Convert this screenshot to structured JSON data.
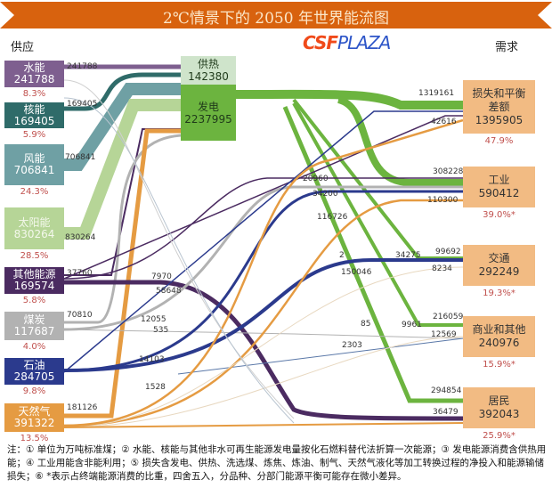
{
  "title": "2℃情景下的 2050 年世界能流图",
  "supply_heading": "供应",
  "demand_heading": "需求",
  "colors": {
    "banner": "#d8620e",
    "demand_box": "#f2bb83",
    "pct_text": "#c0504d"
  },
  "supply": [
    {
      "name": "水能",
      "value": "241788",
      "pct": "8.3%",
      "color": "#7e5f8f",
      "flow_label": "241788"
    },
    {
      "name": "核能",
      "value": "169405",
      "pct": "5.9%",
      "color": "#2f6b69",
      "flow_label": "169405"
    },
    {
      "name": "风能",
      "value": "706841",
      "pct": "24.3%",
      "color": "#6fa0a4",
      "flow_label": "706841"
    },
    {
      "name": "太阳能",
      "value": "830264",
      "pct": "28.5%",
      "color": "#b6d597",
      "flow_label": "830264"
    },
    {
      "name": "其他能源",
      "value": "169574",
      "pct": "5.8%",
      "color": "#4b2b61",
      "flow_label": "37760"
    },
    {
      "name": "煤炭",
      "value": "117687",
      "pct": "4.0%",
      "color": "#b2b2b2",
      "flow_label": "70810"
    },
    {
      "name": "石油",
      "value": "284705",
      "pct": "9.8%",
      "color": "#2b3a8d",
      "flow_label": ""
    },
    {
      "name": "天然气",
      "value": "391322",
      "pct": "13.5%",
      "color": "#e59b42",
      "flow_label": "181126"
    }
  ],
  "conversion": [
    {
      "name": "供热",
      "value": "142380",
      "color": "#cfe4cb"
    },
    {
      "name": "发电",
      "value": "2237995",
      "color": "#6cb43f"
    }
  ],
  "demand": [
    {
      "name": "损失和平衡差额",
      "name_l1": "损失和平衡",
      "name_l2": "差额",
      "value": "1395905",
      "pct": "47.9%"
    },
    {
      "name": "工业",
      "value": "590412",
      "pct": "39.0%*"
    },
    {
      "name": "交通",
      "value": "292249",
      "pct": "19.3%*"
    },
    {
      "name": "商业和其他",
      "value": "240976",
      "pct": "15.9%*"
    },
    {
      "name": "居民",
      "value": "392043",
      "pct": "25.9%*"
    }
  ],
  "flow_labels": [
    "7970",
    "58648",
    "12055",
    "535",
    "14103",
    "1528",
    "1319161",
    "42616",
    "308228",
    "110300",
    "20960",
    "34200",
    "116726",
    "2",
    "150046",
    "34275",
    "99692",
    "8234",
    "85",
    "9961",
    "216059",
    "12569",
    "2303",
    "294854",
    "36479"
  ],
  "notes": "注：① 单位为万吨标准煤；② 水能、核能与其他非水可再生能源发电量按化石燃料替代法折算一次能源；③ 发电能源消费含供热用能；④ 工业用能含非能利用；⑤ 损失含发电、供热、洗选煤、炼焦、炼油、制气、天然气液化等加工转换过程的净投入和能源输储损失；⑥ *表示占终端能源消费的比重，四舍五入，分品种、分部门能源平衡可能存在微小差异。",
  "watermark": "CSFPLAZA"
}
